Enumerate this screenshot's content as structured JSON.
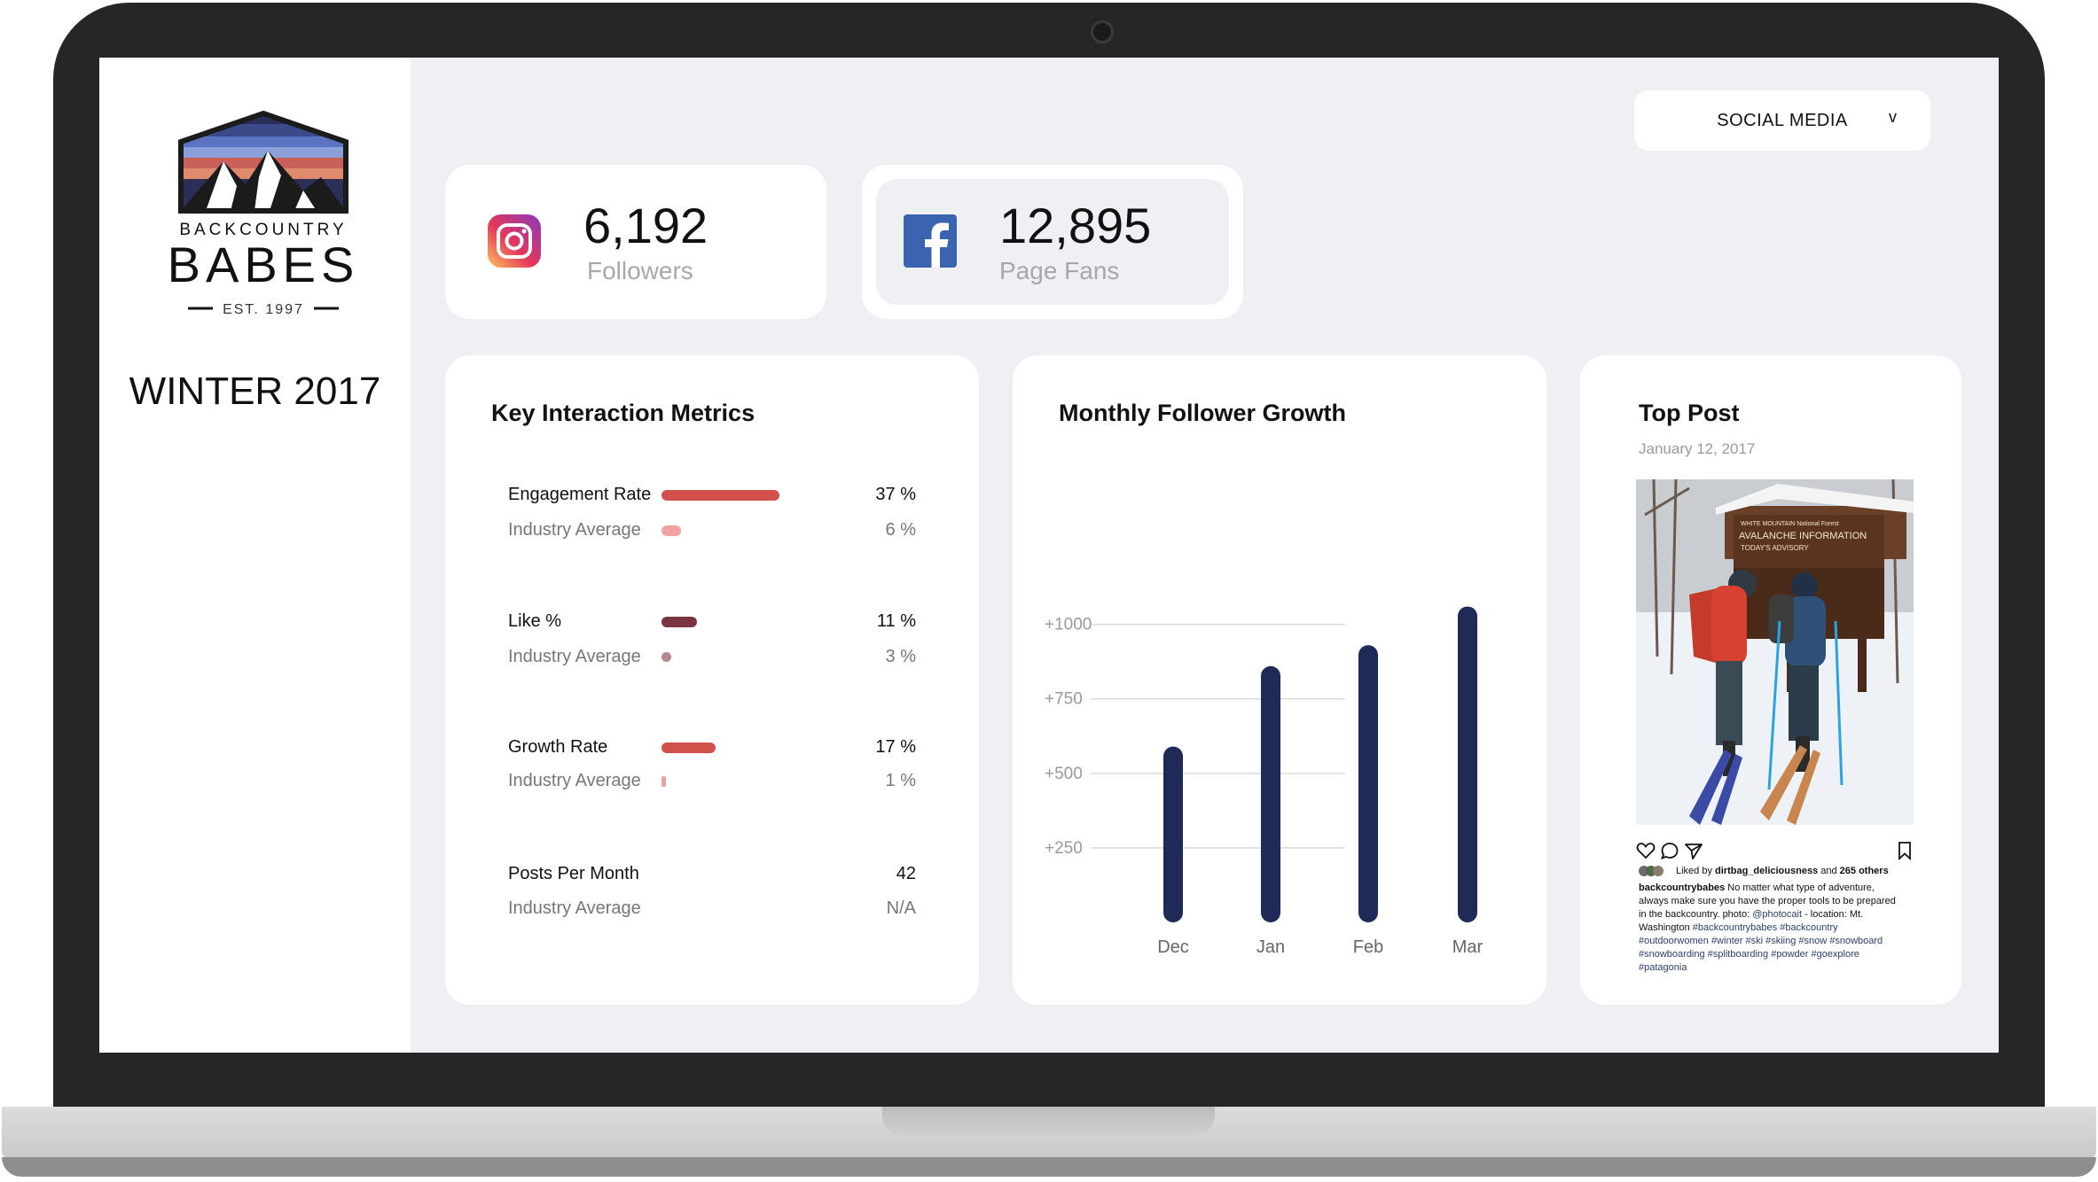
{
  "brand": {
    "name_top": "BACKCOUNTRY",
    "name_main": "BABES",
    "established": "EST. 1997",
    "season": "WINTER 2017"
  },
  "dropdown": {
    "label": "SOCIAL MEDIA",
    "chevron": "v"
  },
  "stats": {
    "instagram": {
      "icon": "instagram-icon",
      "value": "6,192",
      "label": "Followers"
    },
    "facebook": {
      "icon": "facebook-icon",
      "value": "12,895",
      "label": "Page Fans"
    }
  },
  "metrics": {
    "title": "Key Interaction Metrics",
    "rows": [
      {
        "label": "Engagement Rate",
        "value": "37 %",
        "value_pct": 37,
        "color": "#d2504b",
        "avg_label": "Industry Average",
        "avg_value": "6 %",
        "avg_pct": 6,
        "avg_color": "#efa3a0"
      },
      {
        "label": "Like %",
        "value": "11 %",
        "value_pct": 11,
        "color": "#7a3440",
        "avg_label": "Industry Average",
        "avg_value": "3 %",
        "avg_pct": 3,
        "avg_color": "#b9858d"
      },
      {
        "label": "Growth Rate",
        "value": "17 %",
        "value_pct": 17,
        "color": "#d2504b",
        "avg_label": "Industry Average",
        "avg_value": "1 %",
        "avg_pct": 1,
        "avg_color": "#efa3a0"
      },
      {
        "label": "Posts Per Month",
        "value": "42",
        "avg_label": "Industry Average",
        "avg_value": "N/A"
      }
    ]
  },
  "growth": {
    "title": "Monthly Follower Growth",
    "chart_data": {
      "type": "bar",
      "categories": [
        "Dec",
        "Jan",
        "Feb",
        "Mar"
      ],
      "values": [
        590,
        860,
        930,
        1060
      ],
      "ytick_labels": [
        "+250",
        "+500",
        "+750",
        "+1000"
      ],
      "ytick_values": [
        250,
        500,
        750,
        1000
      ],
      "ylim": [
        0,
        1100
      ],
      "grid": true,
      "bar_color": "#1f2a56"
    }
  },
  "top_post": {
    "title": "Top Post",
    "date": "January 12, 2017",
    "photo_sign_line1": "WHITE MOUNTAIN National Forest",
    "photo_sign_line2": "AVALANCHE INFORMATION",
    "photo_sign_line3": "TODAY'S ADVISORY",
    "likes_prefix": "Liked by ",
    "likes_user": "dirtbag_deliciousness",
    "likes_mid": " and ",
    "likes_count": "265 others",
    "caption_user": "backcountrybabes",
    "caption_text": " No matter what type of adventure, always make sure you have the proper tools to be prepared in the backcountry.  photo: ",
    "caption_mention": "@photocait",
    "caption_loc": " - location: Mt. Washington ",
    "caption_tags": "#backcountrybabes #backcountry #outdoorwomen #winter #ski #skiing #snow #snowboard #snowboarding #splitboarding #powder #goexplore #patagonia"
  }
}
